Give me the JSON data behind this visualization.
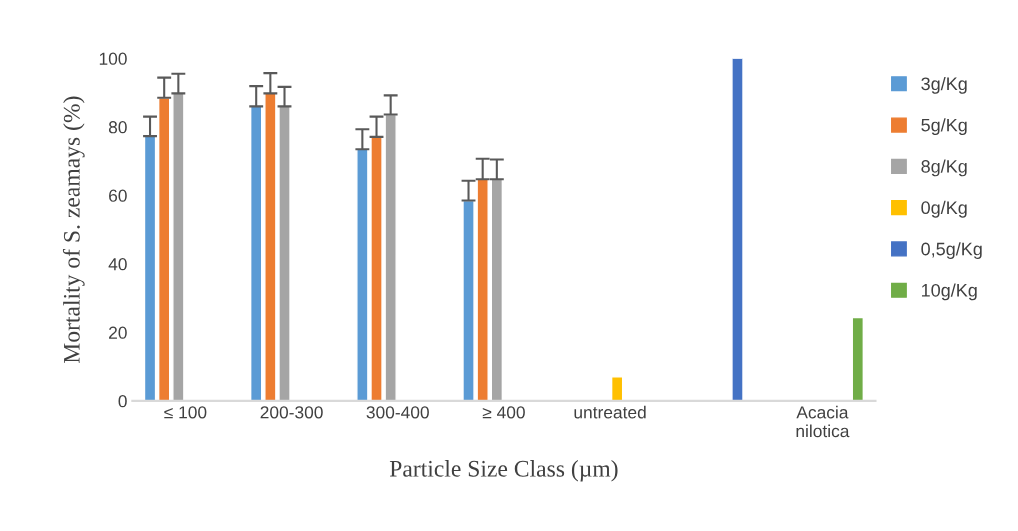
{
  "chart_data": {
    "type": "bar",
    "xlabel": "Particle Size Class (µm)",
    "ylabel": "Mortality of S. zeamays (%)",
    "categories": [
      "≤ 100",
      "200-300",
      "300-400",
      "≥ 400",
      "untreated",
      null,
      "Acacia nilotica"
    ],
    "series": [
      {
        "name": "3g/Kg",
        "color": "#5b9bd5",
        "values": [
          77.3,
          86.0,
          73.5,
          58.5,
          null,
          null,
          null
        ],
        "errors": [
          [
            77.3,
            83.0
          ],
          [
            86.0,
            91.9
          ],
          [
            73.5,
            79.3
          ],
          [
            58.5,
            64.3
          ],
          null,
          null,
          null
        ]
      },
      {
        "name": "5g/Kg",
        "color": "#ed7d31",
        "values": [
          88.5,
          89.8,
          77.1,
          64.7,
          null,
          null,
          null
        ],
        "errors": [
          [
            88.5,
            94.4
          ],
          [
            89.8,
            95.7
          ],
          [
            77.1,
            83.0
          ],
          [
            64.7,
            70.7
          ],
          null,
          null,
          null
        ]
      },
      {
        "name": "8g/Kg",
        "color": "#a5a5a5",
        "values": [
          89.8,
          86.0,
          83.6,
          64.7,
          null,
          null,
          null
        ],
        "errors": [
          [
            89.8,
            95.5
          ],
          [
            86.0,
            91.7
          ],
          [
            83.6,
            89.2
          ],
          [
            64.7,
            70.5
          ],
          null,
          null,
          null
        ]
      },
      {
        "name": "0g/Kg",
        "color": "#ffc000",
        "values": [
          null,
          null,
          null,
          null,
          7.0,
          null,
          null
        ]
      },
      {
        "name": "0,5g/Kg",
        "color": "#4472c4",
        "values": [
          null,
          null,
          null,
          null,
          null,
          100,
          null
        ]
      },
      {
        "name": "10g/Kg",
        "color": "#70ad47",
        "values": [
          null,
          null,
          null,
          null,
          null,
          null,
          24.3
        ]
      }
    ],
    "ylim": [
      0,
      100
    ],
    "yticks": [
      0,
      20,
      40,
      60,
      80,
      100
    ],
    "grid": false,
    "legend": "right"
  }
}
